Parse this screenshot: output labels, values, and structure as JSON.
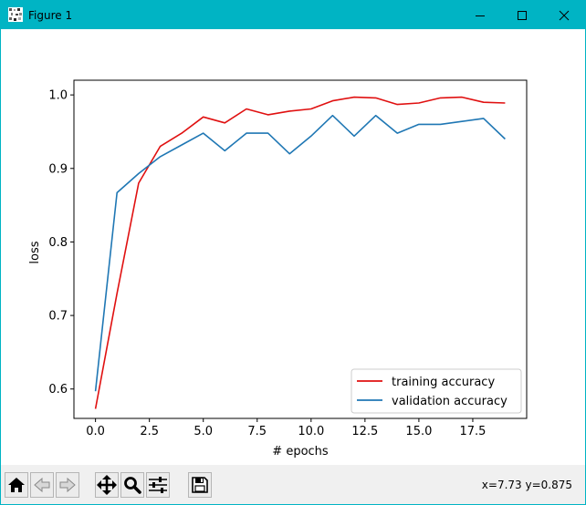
{
  "window": {
    "title": "Figure 1"
  },
  "toolbar": {
    "buttons": [
      {
        "name": "home-button",
        "icon": "home-icon"
      },
      {
        "name": "back-button",
        "icon": "arrow-left-icon"
      },
      {
        "name": "forward-button",
        "icon": "arrow-right-icon"
      },
      {
        "name": "pan-button",
        "icon": "move-icon"
      },
      {
        "name": "zoom-button",
        "icon": "magnifier-icon"
      },
      {
        "name": "subplots-button",
        "icon": "sliders-icon"
      },
      {
        "name": "save-button",
        "icon": "floppy-disk-icon"
      }
    ],
    "coordinates": "x=7.73 y=0.875"
  },
  "chart_data": {
    "type": "line",
    "xlabel": "# epochs",
    "ylabel": "loss",
    "xlim": [
      -1,
      20
    ],
    "ylim": [
      0.56,
      1.02
    ],
    "xticks": [
      0.0,
      2.5,
      5.0,
      7.5,
      10.0,
      12.5,
      15.0,
      17.5
    ],
    "xtick_labels": [
      "0.0",
      "2.5",
      "5.0",
      "7.5",
      "10.0",
      "12.5",
      "15.0",
      "17.5"
    ],
    "yticks": [
      0.6,
      0.7,
      0.8,
      0.9,
      1.0
    ],
    "ytick_labels": [
      "0.6",
      "0.7",
      "0.8",
      "0.9",
      "1.0"
    ],
    "grid": false,
    "legend_position": "lower-right",
    "x": [
      0,
      1,
      2,
      3,
      4,
      5,
      6,
      7,
      8,
      9,
      10,
      11,
      12,
      13,
      14,
      15,
      16,
      17,
      18,
      19
    ],
    "series": [
      {
        "name": "training accuracy",
        "color": "#e01010",
        "values": [
          0.573,
          0.73,
          0.88,
          0.93,
          0.948,
          0.97,
          0.962,
          0.981,
          0.973,
          0.978,
          0.981,
          0.992,
          0.997,
          0.996,
          0.987,
          0.989,
          0.996,
          0.997,
          0.99,
          0.989
        ]
      },
      {
        "name": "validation accuracy",
        "color": "#1f77b4",
        "values": [
          0.597,
          0.867,
          0.893,
          0.916,
          0.932,
          0.948,
          0.924,
          0.948,
          0.948,
          0.92,
          0.944,
          0.972,
          0.944,
          0.972,
          0.948,
          0.96,
          0.96,
          0.964,
          0.968,
          0.94
        ]
      }
    ]
  }
}
